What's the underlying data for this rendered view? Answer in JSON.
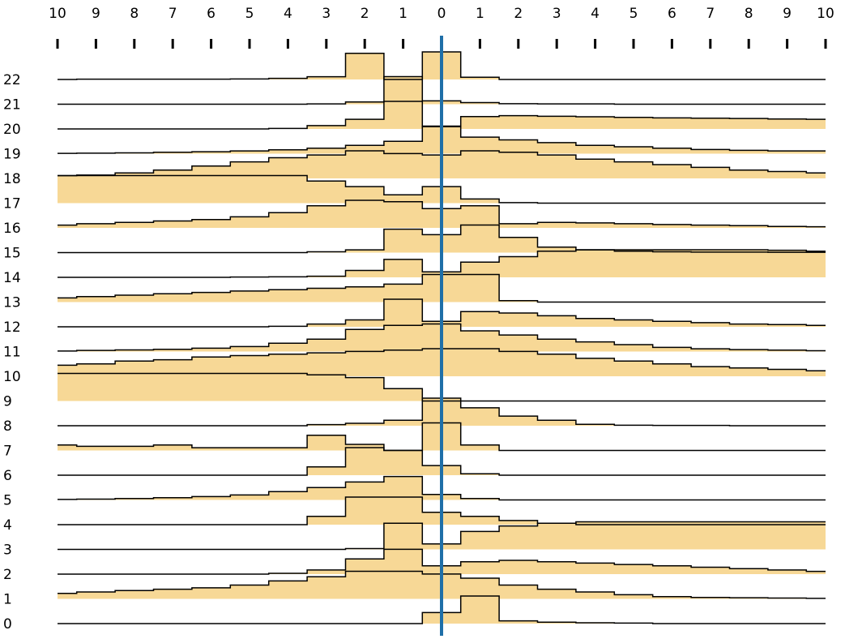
{
  "chart_data": {
    "type": "area",
    "title": "",
    "xlabel": "",
    "ylabel": "",
    "x_tick_labels": [
      "10",
      "9",
      "8",
      "7",
      "6",
      "5",
      "4",
      "3",
      "2",
      "1",
      "0",
      "1",
      "2",
      "3",
      "4",
      "5",
      "6",
      "7",
      "8",
      "9",
      "10"
    ],
    "x_values": [
      -10,
      -9,
      -8,
      -7,
      -6,
      -5,
      -4,
      -3,
      -2,
      -1,
      0,
      1,
      2,
      3,
      4,
      5,
      6,
      7,
      8,
      9,
      10
    ],
    "xlim": [
      -10,
      10
    ],
    "row_labels": [
      "22",
      "21",
      "20",
      "19",
      "18",
      "17",
      "16",
      "15",
      "14",
      "13",
      "12",
      "11",
      "10",
      "9",
      "8",
      "7",
      "6",
      "5",
      "4",
      "3",
      "2",
      "1",
      "0"
    ],
    "row_max": 1,
    "center_x": 0,
    "colors": {
      "fill": "#f7d896",
      "stroke": "#000000",
      "center_line": "#1f6fa8"
    },
    "series": [
      {
        "label": "22",
        "values": [
          0,
          0.01,
          0.01,
          0.01,
          0.01,
          0.02,
          0.04,
          0.1,
          0.95,
          0,
          1,
          0.08,
          0,
          0,
          0,
          0,
          0,
          0,
          0,
          0,
          0
        ]
      },
      {
        "label": "21",
        "values": [
          0,
          0,
          0,
          0,
          0,
          0,
          0,
          0.01,
          0.08,
          1,
          0.12,
          0.06,
          0.02,
          0.01,
          0.01,
          0,
          0,
          0,
          0,
          0,
          0
        ]
      },
      {
        "label": "20",
        "values": [
          0,
          0,
          0,
          0,
          0,
          0,
          0.02,
          0.12,
          0.35,
          1,
          0.08,
          0.45,
          0.48,
          0.46,
          0.44,
          0.42,
          0.4,
          0.39,
          0.38,
          0.36,
          0.35
        ]
      },
      {
        "label": "19",
        "values": [
          0.01,
          0.02,
          0.03,
          0.05,
          0.07,
          0.1,
          0.14,
          0.2,
          0.3,
          0.45,
          1,
          0.6,
          0.5,
          0.4,
          0.3,
          0.25,
          0.2,
          0.15,
          0.12,
          0.1,
          0.1
        ]
      },
      {
        "label": "18",
        "values": [
          0.1,
          0.12,
          0.2,
          0.3,
          0.45,
          0.6,
          0.75,
          0.85,
          1,
          0.9,
          0.85,
          1,
          0.95,
          0.85,
          0.7,
          0.6,
          0.5,
          0.4,
          0.3,
          0.25,
          0.2
        ]
      },
      {
        "label": "17",
        "values": [
          1,
          1,
          1,
          1,
          1,
          1,
          1,
          0.8,
          0.6,
          0.3,
          0.6,
          0.15,
          0.02,
          0,
          0,
          0,
          0,
          0,
          0,
          0,
          0
        ]
      },
      {
        "label": "16",
        "values": [
          0.1,
          0.15,
          0.2,
          0.25,
          0.3,
          0.4,
          0.55,
          0.8,
          1,
          0.95,
          0.7,
          0.8,
          0.15,
          0.2,
          0.18,
          0.15,
          0.12,
          0.1,
          0.08,
          0.05,
          0.04
        ]
      },
      {
        "label": "15",
        "values": [
          0,
          0,
          0,
          0,
          0,
          0,
          0,
          0.03,
          0.1,
          0.85,
          0.65,
          1,
          0.55,
          0.2,
          0.1,
          0.05,
          0.03,
          0.02,
          0.02,
          0.01,
          0.01
        ]
      },
      {
        "label": "14",
        "values": [
          0,
          0,
          0,
          0,
          0,
          0.01,
          0.02,
          0.04,
          0.25,
          0.65,
          0.2,
          0.55,
          0.75,
          0.95,
          1,
          1,
          1,
          1,
          1,
          0.98,
          0.95
        ]
      },
      {
        "label": "13",
        "values": [
          0.15,
          0.2,
          0.25,
          0.3,
          0.35,
          0.4,
          0.45,
          0.5,
          0.55,
          0.65,
          1,
          1,
          0.05,
          0,
          0,
          0,
          0,
          0,
          0,
          0,
          0
        ]
      },
      {
        "label": "12",
        "values": [
          0,
          0,
          0,
          0,
          0,
          0,
          0.02,
          0.1,
          0.25,
          1,
          0.2,
          0.55,
          0.5,
          0.4,
          0.3,
          0.25,
          0.2,
          0.15,
          0.1,
          0.08,
          0.05
        ]
      },
      {
        "label": "11",
        "values": [
          0.02,
          0.04,
          0.06,
          0.08,
          0.12,
          0.18,
          0.3,
          0.45,
          0.8,
          0.95,
          1,
          0.75,
          0.6,
          0.45,
          0.35,
          0.25,
          0.15,
          0.1,
          0.07,
          0.05,
          0.03
        ]
      },
      {
        "label": "10",
        "values": [
          0.4,
          0.45,
          0.55,
          0.6,
          0.7,
          0.75,
          0.8,
          0.85,
          0.9,
          0.95,
          1,
          1,
          0.9,
          0.8,
          0.65,
          0.55,
          0.45,
          0.35,
          0.3,
          0.25,
          0.2
        ]
      },
      {
        "label": "9",
        "values": [
          1,
          1,
          1,
          1,
          1,
          1,
          1,
          0.95,
          0.85,
          0.45,
          0,
          0,
          0,
          0,
          0,
          0,
          0,
          0,
          0,
          0,
          0
        ]
      },
      {
        "label": "8",
        "values": [
          0,
          0,
          0,
          0,
          0,
          0,
          0,
          0.04,
          0.09,
          0.2,
          1,
          0.65,
          0.35,
          0.2,
          0.05,
          0.02,
          0.01,
          0.01,
          0,
          0,
          0
        ]
      },
      {
        "label": "7",
        "values": [
          0.2,
          0.15,
          0.15,
          0.2,
          0.1,
          0.1,
          0.1,
          0.55,
          0.22,
          0,
          1,
          0.2,
          0,
          0,
          0,
          0,
          0,
          0,
          0,
          0,
          0
        ]
      },
      {
        "label": "6",
        "values": [
          0,
          0,
          0,
          0,
          0,
          0,
          0,
          0.3,
          1,
          0.9,
          0.35,
          0.05,
          0,
          0,
          0,
          0,
          0,
          0,
          0,
          0,
          0
        ]
      },
      {
        "label": "5",
        "values": [
          0.02,
          0.03,
          0.05,
          0.08,
          0.12,
          0.18,
          0.3,
          0.45,
          0.65,
          0.85,
          0.2,
          0.05,
          0,
          0,
          0,
          0,
          0,
          0,
          0,
          0,
          0
        ]
      },
      {
        "label": "4",
        "values": [
          0,
          0,
          0,
          0,
          0,
          0,
          0,
          0.3,
          1,
          1,
          0.45,
          0.3,
          0.15,
          0.05,
          0,
          0,
          0,
          0,
          0,
          0,
          0
        ]
      },
      {
        "label": "3",
        "values": [
          0,
          0,
          0,
          0,
          0,
          0,
          0,
          0,
          0.03,
          0.95,
          0.2,
          0.65,
          0.85,
          0.95,
          1,
          1,
          1,
          1,
          1,
          1,
          1
        ]
      },
      {
        "label": "2",
        "values": [
          0,
          0,
          0,
          0,
          0,
          0,
          0.03,
          0.15,
          0.55,
          0.9,
          0.3,
          0.45,
          0.5,
          0.45,
          0.4,
          0.35,
          0.3,
          0.25,
          0.2,
          0.15,
          0.1
        ]
      },
      {
        "label": "1",
        "values": [
          0.2,
          0.25,
          0.3,
          0.35,
          0.4,
          0.5,
          0.65,
          0.8,
          1,
          1,
          0.9,
          0.75,
          0.5,
          0.35,
          0.25,
          0.15,
          0.08,
          0.05,
          0.04,
          0.03,
          0.02
        ]
      },
      {
        "label": "0",
        "values": [
          0,
          0,
          0,
          0,
          0,
          0,
          0,
          0,
          0,
          0,
          0.4,
          1,
          0.1,
          0.05,
          0.03,
          0.02,
          0,
          0,
          0,
          0,
          0
        ]
      }
    ]
  }
}
